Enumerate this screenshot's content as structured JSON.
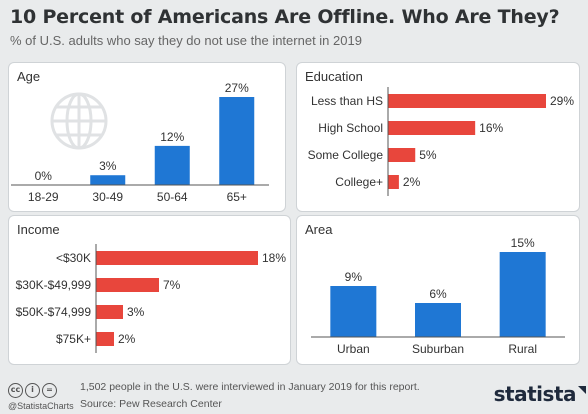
{
  "header": {
    "title": "10 Percent of Americans Are Offline. Who Are They?",
    "subtitle": "% of U.S. adults who say they do not use the internet in 2019"
  },
  "colors": {
    "blue": "#1f77d4",
    "red": "#e8463c",
    "panel_bg": "#ffffff",
    "page_bg": "#e9ebec"
  },
  "chart_data": [
    {
      "type": "bar",
      "orientation": "vertical",
      "title": "Age",
      "categories": [
        "18-29",
        "30-49",
        "50-64",
        "65+"
      ],
      "values": [
        0,
        3,
        12,
        27
      ],
      "value_labels": [
        "0%",
        "3%",
        "12%",
        "27%"
      ],
      "ylim": [
        0,
        27
      ],
      "color": "#1f77d4",
      "icon": "globe-icon"
    },
    {
      "type": "bar",
      "orientation": "horizontal",
      "title": "Education",
      "categories": [
        "Less than HS",
        "High School",
        "Some College",
        "College+"
      ],
      "values": [
        29,
        16,
        5,
        2
      ],
      "value_labels": [
        "29%",
        "16%",
        "5%",
        "2%"
      ],
      "xlim": [
        0,
        29
      ],
      "color": "#e8463c"
    },
    {
      "type": "bar",
      "orientation": "horizontal",
      "title": "Income",
      "categories": [
        "<$30K",
        "$30K-$49,999",
        "$50K-$74,999",
        "$75K+"
      ],
      "values": [
        18,
        7,
        3,
        2
      ],
      "value_labels": [
        "18%",
        "7%",
        "3%",
        "2%"
      ],
      "xlim": [
        0,
        18
      ],
      "color": "#e8463c"
    },
    {
      "type": "bar",
      "orientation": "vertical",
      "title": "Area",
      "categories": [
        "Urban",
        "Suburban",
        "Rural"
      ],
      "values": [
        9,
        6,
        15
      ],
      "value_labels": [
        "9%",
        "6%",
        "15%"
      ],
      "ylim": [
        0,
        15
      ],
      "color": "#1f77d4"
    }
  ],
  "footer": {
    "license_icons": [
      "cc-icon",
      "info-icon",
      "equals-icon"
    ],
    "license_glyphs": [
      "cc",
      "i",
      "="
    ],
    "handle": "@StatistaCharts",
    "note": "1,502 people in the U.S. were interviewed in January 2019 for this report.",
    "source": "Source: Pew Research Center",
    "brand": "statista"
  }
}
